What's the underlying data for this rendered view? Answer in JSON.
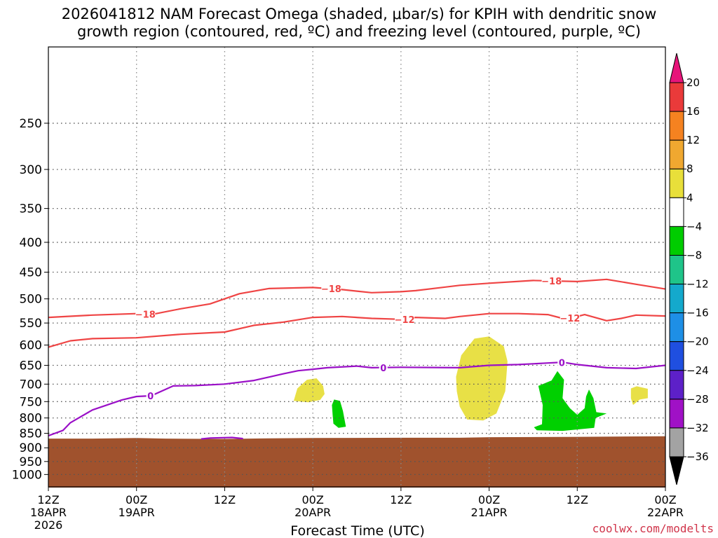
{
  "title": {
    "line1": "2026041812 NAM Forecast Omega (shaded, μbar/s) for KPIH with dendritic snow",
    "line2": "growth region (contoured, red, ºC) and freezing level (contoured, purple, ºC)"
  },
  "credit": "coolwx.com/modelts",
  "chart_data": {
    "type": "heatmap",
    "xlabel": "Forecast Time (UTC)",
    "ylabel": "",
    "x_range_hours": [
      0,
      84
    ],
    "y_scale": "log",
    "y_range_hPa": [
      1050,
      185
    ],
    "x_ticks": [
      {
        "hour": 0,
        "line1": "12Z",
        "line2": "18APR",
        "line3": "2026"
      },
      {
        "hour": 12,
        "line1": "00Z",
        "line2": "19APR",
        "line3": ""
      },
      {
        "hour": 24,
        "line1": "12Z",
        "line2": "",
        "line3": ""
      },
      {
        "hour": 36,
        "line1": "00Z",
        "line2": "20APR",
        "line3": ""
      },
      {
        "hour": 48,
        "line1": "12Z",
        "line2": "",
        "line3": ""
      },
      {
        "hour": 60,
        "line1": "00Z",
        "line2": "21APR",
        "line3": ""
      },
      {
        "hour": 72,
        "line1": "12Z",
        "line2": "",
        "line3": ""
      },
      {
        "hour": 84,
        "line1": "00Z",
        "line2": "22APR",
        "line3": ""
      }
    ],
    "y_ticks": [
      250,
      300,
      350,
      400,
      450,
      500,
      550,
      600,
      650,
      700,
      750,
      800,
      850,
      900,
      950,
      1000
    ],
    "grid": true,
    "terrain": {
      "color": "#a0522d",
      "top_pressure": [
        [
          0,
          868
        ],
        [
          6,
          868
        ],
        [
          12,
          866
        ],
        [
          16,
          868
        ],
        [
          24,
          869
        ],
        [
          30,
          867
        ],
        [
          36,
          866
        ],
        [
          48,
          865
        ],
        [
          56,
          865
        ],
        [
          60,
          863
        ],
        [
          72,
          862
        ],
        [
          84,
          860
        ]
      ]
    },
    "contours": [
      {
        "name": "-18",
        "color": "#ef4444",
        "points": [
          [
            0,
            538
          ],
          [
            6,
            533
          ],
          [
            12,
            530
          ],
          [
            14,
            532
          ],
          [
            18,
            520
          ],
          [
            22,
            510
          ],
          [
            24,
            500
          ],
          [
            26,
            490
          ],
          [
            30,
            480
          ],
          [
            36,
            478
          ],
          [
            40,
            482
          ],
          [
            42,
            485
          ],
          [
            44,
            488
          ],
          [
            48,
            486
          ],
          [
            50,
            484
          ],
          [
            56,
            474
          ],
          [
            60,
            470
          ],
          [
            66,
            465
          ],
          [
            72,
            467
          ],
          [
            76,
            463
          ],
          [
            80,
            472
          ],
          [
            84,
            481
          ]
        ],
        "labels": [
          [
            13.2,
            531
          ],
          [
            38.5,
            480
          ],
          [
            68.5,
            466
          ]
        ]
      },
      {
        "name": "-12",
        "color": "#ef4444",
        "points": [
          [
            0,
            605
          ],
          [
            3,
            590
          ],
          [
            6,
            585
          ],
          [
            12,
            583
          ],
          [
            18,
            575
          ],
          [
            24,
            570
          ],
          [
            28,
            555
          ],
          [
            32,
            548
          ],
          [
            36,
            538
          ],
          [
            40,
            536
          ],
          [
            44,
            540
          ],
          [
            48,
            542
          ],
          [
            50,
            538
          ],
          [
            54,
            540
          ],
          [
            56,
            536
          ],
          [
            60,
            530
          ],
          [
            64,
            530
          ],
          [
            68,
            532
          ],
          [
            70,
            540
          ],
          [
            72,
            536
          ],
          [
            73,
            532
          ],
          [
            76,
            545
          ],
          [
            78,
            540
          ],
          [
            80,
            533
          ],
          [
            84,
            535
          ]
        ],
        "labels": [
          [
            48.5,
            542
          ],
          [
            71.0,
            539
          ]
        ]
      },
      {
        "name": "0",
        "color": "#9a10c7",
        "points": [
          [
            0,
            858
          ],
          [
            2,
            840
          ],
          [
            3,
            815
          ],
          [
            6,
            775
          ],
          [
            10,
            745
          ],
          [
            12,
            735
          ],
          [
            14,
            733
          ],
          [
            17,
            705
          ],
          [
            20,
            704
          ],
          [
            24,
            700
          ],
          [
            28,
            690
          ],
          [
            32,
            672
          ],
          [
            34,
            664
          ],
          [
            36,
            660
          ],
          [
            38,
            656
          ],
          [
            42,
            652
          ],
          [
            44,
            656
          ],
          [
            48,
            655
          ],
          [
            56,
            656
          ],
          [
            60,
            650
          ],
          [
            64,
            648
          ],
          [
            68,
            644
          ],
          [
            70,
            642
          ],
          [
            72,
            648
          ],
          [
            76,
            656
          ],
          [
            80,
            658
          ],
          [
            84,
            650
          ]
        ],
        "labels": [
          [
            13.9,
            733
          ],
          [
            45.6,
            656
          ],
          [
            69.9,
            643
          ]
        ]
      },
      {
        "name": "0-surface",
        "color": "#9a10c7",
        "points": [
          [
            20.8,
            869
          ],
          [
            22,
            866
          ],
          [
            25,
            864
          ],
          [
            26.5,
            868
          ]
        ],
        "labels": []
      }
    ],
    "shaded_regions": [
      {
        "name": "+4",
        "color": "#e8e046",
        "points": [
          [
            33.4,
            748
          ],
          [
            33.9,
            712
          ],
          [
            35.2,
            688
          ],
          [
            36.5,
            684
          ],
          [
            37.4,
            705
          ],
          [
            37.6,
            728
          ],
          [
            37.0,
            745
          ],
          [
            35.4,
            752
          ],
          [
            33.4,
            748
          ]
        ]
      },
      {
        "name": "-4",
        "color": "#00d000",
        "points": [
          [
            38.6,
            760
          ],
          [
            38.9,
            744
          ],
          [
            39.7,
            748
          ],
          [
            40.1,
            778
          ],
          [
            40.5,
            828
          ],
          [
            39.5,
            832
          ],
          [
            38.8,
            818
          ],
          [
            38.7,
            790
          ],
          [
            38.6,
            760
          ]
        ]
      },
      {
        "name": "+4",
        "color": "#e8e046",
        "points": [
          [
            55.5,
            680
          ],
          [
            56.2,
            625
          ],
          [
            58.0,
            585
          ],
          [
            60.0,
            580
          ],
          [
            62.0,
            603
          ],
          [
            62.5,
            640
          ],
          [
            62.2,
            720
          ],
          [
            61.0,
            786
          ],
          [
            59.2,
            808
          ],
          [
            57.0,
            805
          ],
          [
            56.0,
            765
          ],
          [
            55.6,
            720
          ],
          [
            55.5,
            680
          ]
        ]
      },
      {
        "name": "-4",
        "color": "#00d000",
        "points": [
          [
            66.1,
            830
          ],
          [
            67.2,
            820
          ],
          [
            67.3,
            760
          ],
          [
            66.7,
            705
          ],
          [
            68.5,
            690
          ],
          [
            69.3,
            665
          ],
          [
            70.2,
            688
          ],
          [
            70.0,
            740
          ],
          [
            71.0,
            770
          ],
          [
            72.0,
            790
          ],
          [
            73.0,
            770
          ],
          [
            73.2,
            735
          ],
          [
            73.6,
            715
          ],
          [
            74.2,
            740
          ],
          [
            74.6,
            782
          ],
          [
            76.0,
            786
          ],
          [
            74.5,
            800
          ],
          [
            74.3,
            832
          ],
          [
            70.0,
            842
          ],
          [
            66.5,
            840
          ],
          [
            66.1,
            830
          ]
        ]
      },
      {
        "name": "+4",
        "color": "#e8e046",
        "points": [
          [
            79.3,
            712
          ],
          [
            80.1,
            706
          ],
          [
            81.6,
            713
          ],
          [
            81.6,
            740
          ],
          [
            80.5,
            744
          ],
          [
            79.6,
            760
          ],
          [
            79.3,
            740
          ],
          [
            79.3,
            712
          ]
        ]
      }
    ],
    "colorbar": {
      "levels": [
        "20",
        "16",
        "12",
        "8",
        "4",
        "−4",
        "−8",
        "−12",
        "−16",
        "−20",
        "−24",
        "−28",
        "−32",
        "−36"
      ],
      "colors": [
        "#e7157a",
        "#ea3a3a",
        "#f58220",
        "#f0a830",
        "#e8df3a",
        "#ffffff",
        "#00cc00",
        "#1fc489",
        "#14a9cc",
        "#1e8fe6",
        "#1f4fe0",
        "#5d20c8",
        "#a011c6",
        "#a3a3a3",
        "#000000"
      ]
    }
  }
}
